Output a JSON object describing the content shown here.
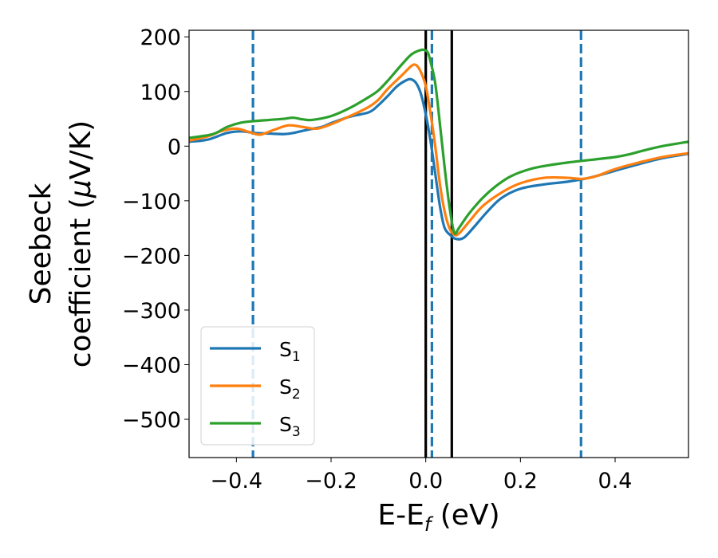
{
  "chart_data": {
    "type": "line",
    "xlabel": "E-E",
    "xlabel_sub": "f",
    "xlabel_unit": " (eV)",
    "ylabel_line1": "Seebeck",
    "ylabel_line2_pre": "coefficient  (",
    "ylabel_mu": "μ",
    "ylabel_line2_post": "V/K)",
    "xlim": [
      -0.5,
      0.555
    ],
    "ylim": [
      -570,
      212
    ],
    "x_ticks": [
      -0.4,
      -0.2,
      0.0,
      0.2,
      0.4
    ],
    "x_tick_labels": [
      "−0.4",
      "−0.2",
      "0.0",
      "0.2",
      "0.4"
    ],
    "y_ticks": [
      200,
      100,
      0,
      -100,
      -200,
      -300,
      -400,
      -500
    ],
    "y_tick_labels": [
      "200",
      "100",
      "0",
      "−100",
      "−200",
      "−300",
      "−400",
      "−500"
    ],
    "grid": false,
    "legend_position": "lower-left",
    "vlines_solid": [
      0.0,
      0.055
    ],
    "vlines_dashed": [
      -0.365,
      0.013,
      0.328
    ],
    "series": [
      {
        "name": "S",
        "sub": "1",
        "color": "#1f77b4",
        "points": [
          [
            -0.5,
            8
          ],
          [
            -0.46,
            12
          ],
          [
            -0.42,
            24
          ],
          [
            -0.39,
            27
          ],
          [
            -0.36,
            24
          ],
          [
            -0.33,
            23
          ],
          [
            -0.3,
            22
          ],
          [
            -0.28,
            24
          ],
          [
            -0.25,
            30
          ],
          [
            -0.22,
            35
          ],
          [
            -0.2,
            42
          ],
          [
            -0.16,
            54
          ],
          [
            -0.12,
            62
          ],
          [
            -0.1,
            75
          ],
          [
            -0.08,
            92
          ],
          [
            -0.06,
            110
          ],
          [
            -0.04,
            121
          ],
          [
            -0.03,
            122
          ],
          [
            -0.02,
            115
          ],
          [
            -0.01,
            95
          ],
          [
            0.0,
            58
          ],
          [
            0.01,
            10
          ],
          [
            0.02,
            -50
          ],
          [
            0.03,
            -110
          ],
          [
            0.04,
            -150
          ],
          [
            0.055,
            -165
          ],
          [
            0.065,
            -170
          ],
          [
            0.08,
            -168
          ],
          [
            0.1,
            -150
          ],
          [
            0.13,
            -120
          ],
          [
            0.16,
            -95
          ],
          [
            0.2,
            -78
          ],
          [
            0.25,
            -70
          ],
          [
            0.3,
            -65
          ],
          [
            0.35,
            -57
          ],
          [
            0.4,
            -45
          ],
          [
            0.45,
            -33
          ],
          [
            0.5,
            -22
          ],
          [
            0.555,
            -14
          ]
        ]
      },
      {
        "name": "S",
        "sub": "2",
        "color": "#ff7f0e",
        "points": [
          [
            -0.5,
            10
          ],
          [
            -0.46,
            18
          ],
          [
            -0.43,
            28
          ],
          [
            -0.4,
            32
          ],
          [
            -0.37,
            25
          ],
          [
            -0.35,
            21
          ],
          [
            -0.32,
            30
          ],
          [
            -0.29,
            38
          ],
          [
            -0.26,
            35
          ],
          [
            -0.23,
            32
          ],
          [
            -0.2,
            40
          ],
          [
            -0.16,
            55
          ],
          [
            -0.12,
            72
          ],
          [
            -0.1,
            85
          ],
          [
            -0.08,
            105
          ],
          [
            -0.05,
            130
          ],
          [
            -0.03,
            147
          ],
          [
            -0.02,
            148
          ],
          [
            -0.01,
            135
          ],
          [
            0.0,
            110
          ],
          [
            0.01,
            60
          ],
          [
            0.02,
            0
          ],
          [
            0.03,
            -70
          ],
          [
            0.04,
            -120
          ],
          [
            0.05,
            -150
          ],
          [
            0.06,
            -162
          ],
          [
            0.07,
            -160
          ],
          [
            0.09,
            -140
          ],
          [
            0.12,
            -110
          ],
          [
            0.16,
            -85
          ],
          [
            0.2,
            -68
          ],
          [
            0.25,
            -58
          ],
          [
            0.3,
            -58
          ],
          [
            0.33,
            -60
          ],
          [
            0.36,
            -55
          ],
          [
            0.4,
            -42
          ],
          [
            0.45,
            -30
          ],
          [
            0.5,
            -20
          ],
          [
            0.555,
            -13
          ]
        ]
      },
      {
        "name": "S",
        "sub": "3",
        "color": "#2ca02c",
        "points": [
          [
            -0.5,
            15
          ],
          [
            -0.45,
            22
          ],
          [
            -0.42,
            35
          ],
          [
            -0.39,
            43
          ],
          [
            -0.36,
            46
          ],
          [
            -0.33,
            48
          ],
          [
            -0.3,
            50
          ],
          [
            -0.28,
            52
          ],
          [
            -0.26,
            49
          ],
          [
            -0.24,
            48
          ],
          [
            -0.2,
            55
          ],
          [
            -0.16,
            70
          ],
          [
            -0.12,
            90
          ],
          [
            -0.1,
            102
          ],
          [
            -0.08,
            120
          ],
          [
            -0.05,
            150
          ],
          [
            -0.03,
            168
          ],
          [
            -0.01,
            176
          ],
          [
            0.0,
            175
          ],
          [
            0.005,
            170
          ],
          [
            0.01,
            155
          ],
          [
            0.02,
            115
          ],
          [
            0.03,
            40
          ],
          [
            0.04,
            -40
          ],
          [
            0.05,
            -110
          ],
          [
            0.06,
            -158
          ],
          [
            0.07,
            -150
          ],
          [
            0.09,
            -125
          ],
          [
            0.12,
            -95
          ],
          [
            0.15,
            -72
          ],
          [
            0.18,
            -55
          ],
          [
            0.22,
            -42
          ],
          [
            0.26,
            -35
          ],
          [
            0.3,
            -30
          ],
          [
            0.35,
            -25
          ],
          [
            0.4,
            -20
          ],
          [
            0.43,
            -15
          ],
          [
            0.46,
            -8
          ],
          [
            0.5,
            0
          ],
          [
            0.555,
            8
          ]
        ]
      }
    ]
  }
}
